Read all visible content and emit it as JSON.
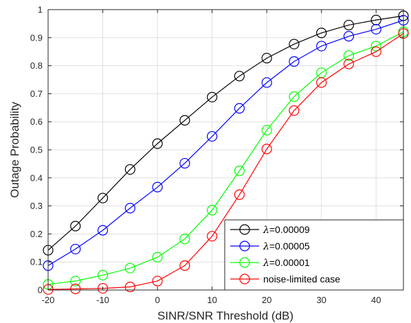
{
  "chart_data": {
    "type": "line",
    "xlabel": "SINR/SNR Threshold (dB)",
    "ylabel": "Outage Probability",
    "xlim": [
      -20,
      45
    ],
    "ylim": [
      0,
      1
    ],
    "xticks": [
      -20,
      -10,
      0,
      10,
      20,
      30,
      40
    ],
    "yticks": [
      0,
      0.1,
      0.2,
      0.3,
      0.4,
      0.5,
      0.6,
      0.7,
      0.8,
      0.9,
      1
    ],
    "xtick_labels": [
      "-20",
      "-10",
      "0",
      "10",
      "20",
      "30",
      "40"
    ],
    "ytick_labels": [
      "0",
      "0.1",
      "0.2",
      "0.3",
      "0.4",
      "0.5",
      "0.6",
      "0.7",
      "0.8",
      "0.9",
      "1"
    ],
    "grid": true,
    "legend_position": "bottom-right",
    "marker": "open-circle",
    "x": [
      -20,
      -15,
      -10,
      -5,
      0,
      5,
      10,
      15,
      20,
      25,
      30,
      35,
      40,
      45
    ],
    "series": [
      {
        "name_symbol": "λ",
        "name_value": "=0.00009",
        "color": "#000000",
        "values": [
          0.142,
          0.228,
          0.328,
          0.43,
          0.522,
          0.605,
          0.688,
          0.763,
          0.827,
          0.877,
          0.917,
          0.945,
          0.963,
          0.978
        ]
      },
      {
        "name_symbol": "λ",
        "name_value": "=0.00005",
        "color": "#0000ff",
        "values": [
          0.087,
          0.146,
          0.213,
          0.292,
          0.367,
          0.452,
          0.548,
          0.648,
          0.74,
          0.815,
          0.87,
          0.905,
          0.93,
          0.962
        ]
      },
      {
        "name_symbol": "λ",
        "name_value": "=0.00001",
        "color": "#00ff00",
        "values": [
          0.02,
          0.032,
          0.053,
          0.078,
          0.117,
          0.182,
          0.285,
          0.425,
          0.57,
          0.69,
          0.775,
          0.836,
          0.87,
          0.921
        ]
      },
      {
        "name_symbol": "",
        "name_value": "noise-limited case",
        "color": "#ff0000",
        "values": [
          0.002,
          0.004,
          0.006,
          0.011,
          0.032,
          0.087,
          0.192,
          0.34,
          0.503,
          0.64,
          0.74,
          0.806,
          0.85,
          0.915
        ]
      }
    ]
  }
}
